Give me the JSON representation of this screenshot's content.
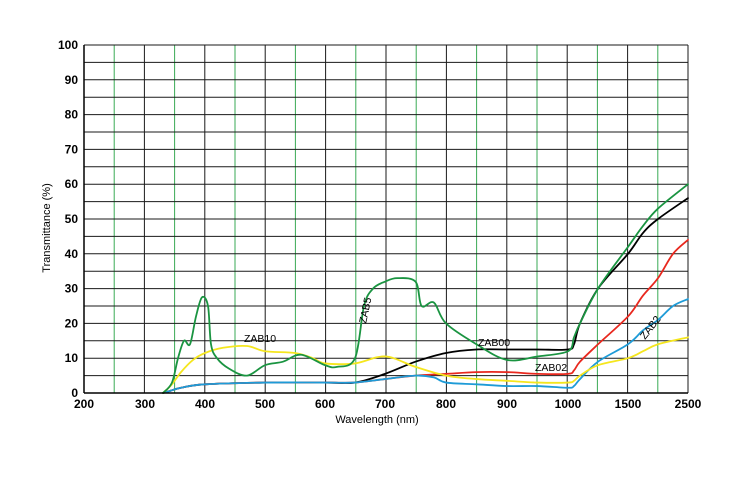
{
  "chart_data": {
    "type": "line",
    "title": "",
    "xlabel": "Wavelength (nm)",
    "ylabel": "Transmittance (%)",
    "ylim": [
      0,
      100
    ],
    "x_ticks": [
      "200",
      "300",
      "400",
      "500",
      "600",
      "700",
      "800",
      "900",
      "1000",
      "1500",
      "2500"
    ],
    "y_ticks": [
      "0",
      "10",
      "20",
      "30",
      "40",
      "50",
      "60",
      "70",
      "80",
      "90",
      "100"
    ],
    "x_axis_note": "non-linear axis: 100 nm steps from 200 to 1000 nm, then 1000–1500 and 1500–2500 nm",
    "grid": true,
    "series": [
      {
        "name": "ZAB00",
        "color": "#000000",
        "points": [
          [
            330,
            0
          ],
          [
            340,
            0.5
          ],
          [
            360,
            1.5
          ],
          [
            400,
            2.5
          ],
          [
            500,
            3
          ],
          [
            600,
            3
          ],
          [
            650,
            3
          ],
          [
            700,
            5.5
          ],
          [
            750,
            9
          ],
          [
            800,
            11.5
          ],
          [
            850,
            12.5
          ],
          [
            900,
            12.5
          ],
          [
            950,
            12.5
          ],
          [
            1000,
            12.5
          ],
          [
            1050,
            14
          ],
          [
            1100,
            20
          ],
          [
            1250,
            30
          ],
          [
            1500,
            40
          ],
          [
            1750,
            46
          ],
          [
            2000,
            50
          ],
          [
            2500,
            56
          ]
        ]
      },
      {
        "name": "ZAB02",
        "color": "#e8281e",
        "points": [
          [
            330,
            0
          ],
          [
            340,
            0.5
          ],
          [
            360,
            1.5
          ],
          [
            400,
            2.5
          ],
          [
            500,
            3
          ],
          [
            600,
            3
          ],
          [
            650,
            3
          ],
          [
            700,
            4
          ],
          [
            750,
            5
          ],
          [
            800,
            5.5
          ],
          [
            850,
            6
          ],
          [
            900,
            6
          ],
          [
            950,
            5.5
          ],
          [
            1000,
            5.5
          ],
          [
            1050,
            6.5
          ],
          [
            1100,
            9
          ],
          [
            1250,
            14
          ],
          [
            1500,
            22
          ],
          [
            1750,
            28
          ],
          [
            2000,
            33
          ],
          [
            2250,
            40
          ],
          [
            2500,
            44
          ]
        ]
      },
      {
        "name": "ZAB2",
        "color": "#1e9bd7",
        "points": [
          [
            330,
            0
          ],
          [
            340,
            0.5
          ],
          [
            360,
            1.5
          ],
          [
            400,
            2.5
          ],
          [
            500,
            3
          ],
          [
            600,
            3
          ],
          [
            650,
            3
          ],
          [
            700,
            4
          ],
          [
            750,
            5
          ],
          [
            780,
            4.5
          ],
          [
            800,
            3
          ],
          [
            850,
            2.5
          ],
          [
            900,
            2
          ],
          [
            950,
            2
          ],
          [
            1000,
            1.5
          ],
          [
            1050,
            2
          ],
          [
            1100,
            4
          ],
          [
            1250,
            9
          ],
          [
            1500,
            14
          ],
          [
            1750,
            18
          ],
          [
            2000,
            21
          ],
          [
            2250,
            25
          ],
          [
            2500,
            27
          ]
        ]
      },
      {
        "name": "ZAB10",
        "color": "#f5e61e",
        "points": [
          [
            330,
            0
          ],
          [
            345,
            2.5
          ],
          [
            360,
            6
          ],
          [
            380,
            9.5
          ],
          [
            400,
            11.5
          ],
          [
            430,
            13
          ],
          [
            470,
            13.5
          ],
          [
            500,
            12
          ],
          [
            550,
            11.5
          ],
          [
            580,
            10
          ],
          [
            600,
            8.5
          ],
          [
            650,
            8.5
          ],
          [
            700,
            10.5
          ],
          [
            750,
            7.5
          ],
          [
            800,
            5
          ],
          [
            850,
            4
          ],
          [
            900,
            3.5
          ],
          [
            950,
            3
          ],
          [
            1000,
            3
          ],
          [
            1050,
            3.5
          ],
          [
            1100,
            5
          ],
          [
            1250,
            8
          ],
          [
            1500,
            10
          ],
          [
            1750,
            12
          ],
          [
            2000,
            14
          ],
          [
            2500,
            16
          ]
        ]
      },
      {
        "name": "ZAB5",
        "color": "#1a9441",
        "points": [
          [
            330,
            0
          ],
          [
            345,
            3
          ],
          [
            355,
            10
          ],
          [
            365,
            15
          ],
          [
            375,
            14
          ],
          [
            385,
            22
          ],
          [
            395,
            27.5
          ],
          [
            405,
            25
          ],
          [
            410,
            14
          ],
          [
            420,
            10
          ],
          [
            440,
            7
          ],
          [
            470,
            5
          ],
          [
            500,
            8
          ],
          [
            530,
            9
          ],
          [
            560,
            11
          ],
          [
            600,
            8
          ],
          [
            620,
            7.5
          ],
          [
            650,
            10
          ],
          [
            665,
            25
          ],
          [
            680,
            30
          ],
          [
            700,
            32
          ],
          [
            720,
            33
          ],
          [
            750,
            32
          ],
          [
            760,
            25
          ],
          [
            780,
            26
          ],
          [
            800,
            20
          ],
          [
            850,
            14
          ],
          [
            900,
            9.5
          ],
          [
            950,
            10.5
          ],
          [
            1000,
            12
          ],
          [
            1050,
            16
          ],
          [
            1100,
            20
          ],
          [
            1250,
            30
          ],
          [
            1500,
            42
          ],
          [
            1750,
            48
          ],
          [
            2000,
            53
          ],
          [
            2500,
            60
          ]
        ]
      }
    ],
    "annotations": [
      "ZAB10",
      "ZAB5",
      "ZAB00",
      "ZAB02",
      "ZAB2"
    ]
  }
}
